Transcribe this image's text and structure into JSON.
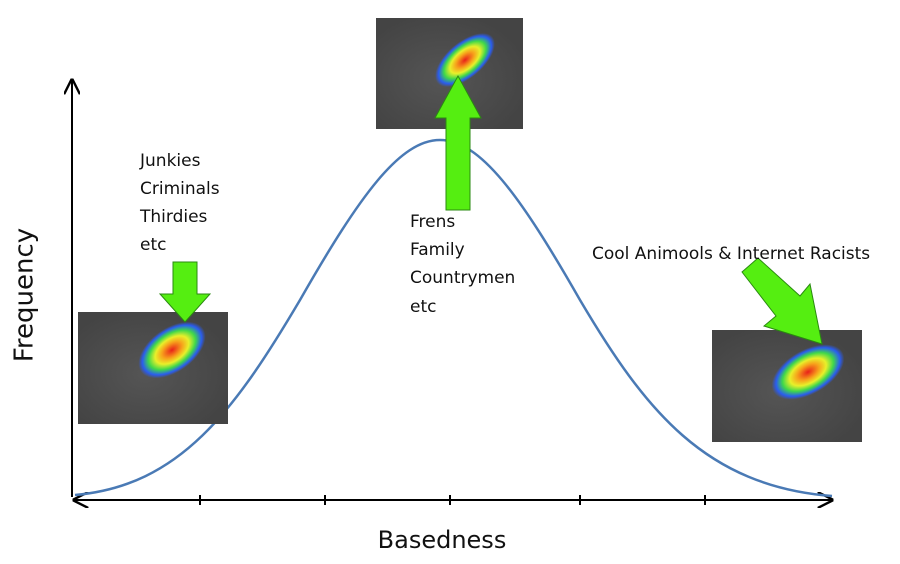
{
  "axes": {
    "x_label": "Basedness",
    "y_label": "Frequency"
  },
  "annotations": [
    {
      "lines": [
        "Junkies",
        "Criminals",
        "Thirdies",
        "etc"
      ]
    },
    {
      "lines": [
        "Frens",
        "Family",
        "Countrymen",
        "etc"
      ]
    },
    {
      "lines": [
        "Cool Animools & Internet Racists"
      ]
    }
  ]
}
